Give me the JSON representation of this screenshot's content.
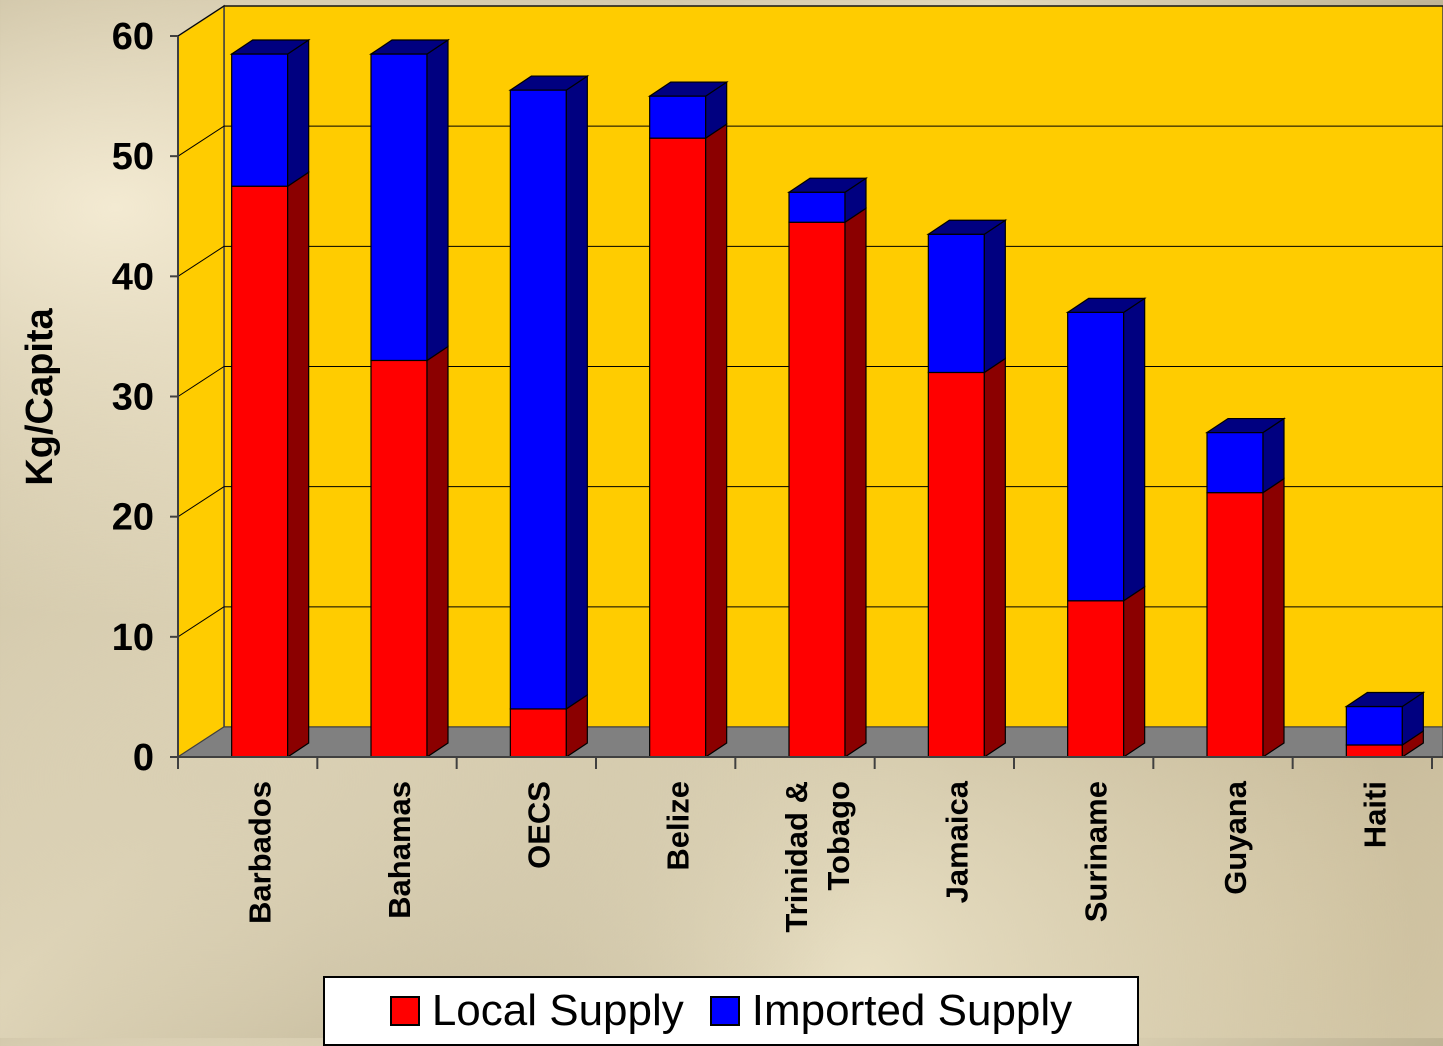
{
  "chart_data": {
    "type": "bar",
    "stacked": true,
    "three_d": true,
    "title": "",
    "xlabel": "",
    "ylabel": "Kg/Capita",
    "ylim": [
      0,
      60
    ],
    "yticks": [
      0,
      10,
      20,
      30,
      40,
      50,
      60
    ],
    "grid": true,
    "legend_position": "bottom",
    "categories": [
      "Barbados",
      "Bahamas",
      "OECS",
      "Belize",
      "Trinidad & Tobago",
      "Jamaica",
      "Suriname",
      "Guyana",
      "Haiti"
    ],
    "series": [
      {
        "name": "Local Supply",
        "color": "#ff0000",
        "side_color": "#8b0000",
        "values": [
          47.5,
          33,
          4,
          51.5,
          44.5,
          32,
          13,
          22,
          1
        ]
      },
      {
        "name": "Imported Supply",
        "color": "#0000ff",
        "side_color": "#000080",
        "values": [
          11,
          25.5,
          51.5,
          3.5,
          2.5,
          11.5,
          24,
          5,
          3.2
        ]
      }
    ],
    "plot_background": "#ffcc00",
    "floor_color": "#808080"
  }
}
